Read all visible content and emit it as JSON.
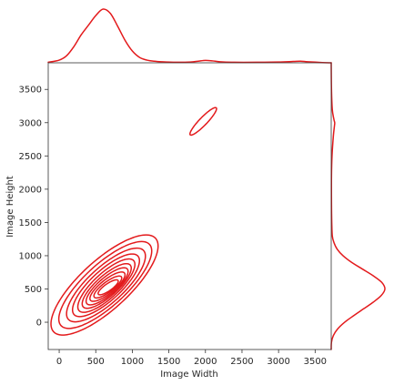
{
  "chart_data": {
    "type": "kde-jointplot",
    "color": "#e31a1c",
    "xlabel": "Image Width",
    "ylabel": "Image Height",
    "xlim": [
      -150,
      3720
    ],
    "ylim": [
      -410,
      3900
    ],
    "x_ticks": [
      0,
      500,
      1000,
      1500,
      2000,
      2500,
      3000,
      3500
    ],
    "y_ticks": [
      0,
      500,
      1000,
      1500,
      2000,
      2500,
      3000,
      3500
    ],
    "x_marginal_density": {
      "x": [
        -150,
        0,
        100,
        200,
        300,
        400,
        500,
        600,
        700,
        800,
        900,
        1000,
        1100,
        1200,
        1300,
        1400,
        1600,
        1800,
        1900,
        2000,
        2100,
        2200,
        2400,
        2700,
        3000,
        3200,
        3300,
        3400,
        3600,
        3720
      ],
      "density": [
        0.01,
        0.05,
        0.13,
        0.3,
        0.52,
        0.7,
        0.88,
        1.0,
        0.92,
        0.68,
        0.42,
        0.22,
        0.1,
        0.05,
        0.03,
        0.02,
        0.01,
        0.015,
        0.03,
        0.045,
        0.035,
        0.02,
        0.01,
        0.01,
        0.015,
        0.025,
        0.03,
        0.02,
        0.005,
        0.0
      ]
    },
    "y_marginal_density": {
      "y": [
        -410,
        -300,
        -200,
        -100,
        0,
        100,
        200,
        300,
        400,
        500,
        600,
        700,
        800,
        900,
        1000,
        1100,
        1200,
        1300,
        1500,
        1800,
        2200,
        2500,
        2800,
        2950,
        3000,
        3050,
        3200,
        3500,
        3900
      ],
      "density": [
        0.0,
        0.005,
        0.04,
        0.12,
        0.25,
        0.42,
        0.6,
        0.78,
        0.93,
        1.0,
        0.94,
        0.78,
        0.58,
        0.38,
        0.22,
        0.11,
        0.05,
        0.02,
        0.01,
        0.005,
        0.005,
        0.015,
        0.04,
        0.06,
        0.065,
        0.05,
        0.02,
        0.005,
        0.0
      ]
    },
    "main_contours": [
      {
        "cx": 620,
        "cy": 560,
        "rx_major": 990,
        "rx_minor": 350,
        "angle_deg": 46
      },
      {
        "cx": 630,
        "cy": 560,
        "rx_major": 860,
        "rx_minor": 300,
        "angle_deg": 46
      },
      {
        "cx": 640,
        "cy": 560,
        "rx_major": 730,
        "rx_minor": 255,
        "angle_deg": 46
      },
      {
        "cx": 640,
        "cy": 555,
        "rx_major": 620,
        "rx_minor": 215,
        "angle_deg": 46
      },
      {
        "cx": 645,
        "cy": 550,
        "rx_major": 530,
        "rx_minor": 180,
        "angle_deg": 46
      },
      {
        "cx": 650,
        "cy": 545,
        "rx_major": 450,
        "rx_minor": 150,
        "angle_deg": 45
      },
      {
        "cx": 655,
        "cy": 540,
        "rx_major": 380,
        "rx_minor": 125,
        "angle_deg": 44
      },
      {
        "cx": 660,
        "cy": 535,
        "rx_major": 310,
        "rx_minor": 100,
        "angle_deg": 42
      },
      {
        "cx": 665,
        "cy": 530,
        "rx_major": 240,
        "rx_minor": 75,
        "angle_deg": 40
      },
      {
        "cx": 670,
        "cy": 525,
        "rx_major": 170,
        "rx_minor": 52,
        "angle_deg": 38
      }
    ],
    "secondary_contours": [
      {
        "cx": 1970,
        "cy": 3020,
        "rx_major": 270,
        "rx_minor": 55,
        "angle_deg": 49
      }
    ]
  }
}
